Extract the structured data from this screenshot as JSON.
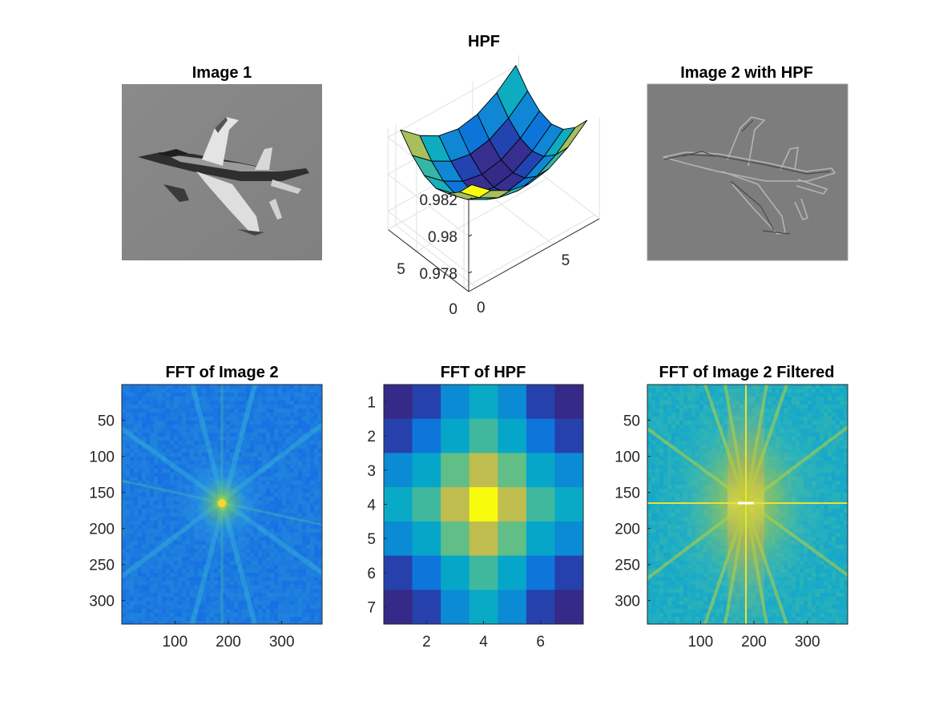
{
  "figure": {
    "titles": [
      "Image 1",
      "HPF",
      "Image 2 with HPF",
      "FFT of Image 2",
      "FFT of HPF",
      "FFT of Image 2 Filtered"
    ]
  },
  "chart_data": [
    {
      "type": "image",
      "title": "Image 1",
      "colormap": "gray",
      "background": "#878787",
      "content": "grayscale photograph of a fighter jet"
    },
    {
      "type": "surface",
      "title": "HPF",
      "x": [
        1,
        2,
        3,
        4,
        5,
        6,
        7
      ],
      "y": [
        1,
        2,
        3,
        4,
        5,
        6,
        7
      ],
      "xticks": [
        "0",
        "5"
      ],
      "yticks": [
        "0",
        "5"
      ],
      "zticks": [
        "0.978",
        "0.98",
        "0.982"
      ],
      "zlim": [
        0.977,
        0.9825
      ],
      "z": [
        [
          0.98237,
          0.98148,
          0.98089,
          0.98068,
          0.98089,
          0.98148,
          0.98237
        ],
        [
          0.98148,
          0.98059,
          0.98,
          0.97979,
          0.98,
          0.98059,
          0.98148
        ],
        [
          0.98089,
          0.98,
          0.97941,
          0.9792,
          0.97941,
          0.98,
          0.98089
        ],
        [
          0.98068,
          0.97979,
          0.9792,
          0.97899,
          0.9792,
          0.97979,
          0.98068
        ],
        [
          0.98089,
          0.98,
          0.97941,
          0.9792,
          0.97941,
          0.98,
          0.98089
        ],
        [
          0.98148,
          0.98059,
          0.98,
          0.97979,
          0.98,
          0.98059,
          0.98148
        ],
        [
          0.98237,
          0.98148,
          0.98089,
          0.98068,
          0.98089,
          0.98148,
          0.98237
        ]
      ],
      "grid": true,
      "colormap": "parula"
    },
    {
      "type": "image",
      "title": "Image 2 with HPF",
      "colormap": "gray",
      "background": "#7d7d7d",
      "content": "high-pass filtered fighter jet (edge outline)"
    },
    {
      "type": "heatmap",
      "title": "FFT of Image 2",
      "xlim": [
        0.5,
        375.5
      ],
      "ylim": [
        0.5,
        332.5
      ],
      "xticks": [
        100,
        200,
        300
      ],
      "yticks": [
        50,
        100,
        150,
        200,
        250,
        300
      ],
      "center": [
        188,
        166
      ],
      "colormap": "parula",
      "content": "log magnitude spectrum, mostly blue with faint yellow-green star pattern at center"
    },
    {
      "type": "heatmap",
      "title": "FFT of HPF",
      "xlim": [
        0.5,
        7.5
      ],
      "ylim": [
        0.5,
        7.5
      ],
      "xticks": [
        2,
        4,
        6
      ],
      "yticks": [
        1,
        2,
        3,
        4,
        5,
        6,
        7
      ],
      "values": [
        [
          0.0,
          0.12,
          0.32,
          0.46,
          0.32,
          0.12,
          0.0
        ],
        [
          0.12,
          0.24,
          0.44,
          0.58,
          0.44,
          0.24,
          0.12
        ],
        [
          0.32,
          0.44,
          0.64,
          0.78,
          0.64,
          0.44,
          0.32
        ],
        [
          0.46,
          0.58,
          0.78,
          1.0,
          0.78,
          0.58,
          0.46
        ],
        [
          0.32,
          0.44,
          0.64,
          0.78,
          0.64,
          0.44,
          0.32
        ],
        [
          0.12,
          0.24,
          0.44,
          0.58,
          0.44,
          0.24,
          0.12
        ],
        [
          0.0,
          0.12,
          0.32,
          0.46,
          0.32,
          0.12,
          0.0
        ]
      ],
      "colormap": "parula"
    },
    {
      "type": "heatmap",
      "title": "FFT of Image 2 Filtered",
      "xlim": [
        0.5,
        375.5
      ],
      "ylim": [
        0.5,
        332.5
      ],
      "xticks": [
        100,
        200,
        300
      ],
      "yticks": [
        50,
        100,
        150,
        200,
        250,
        300
      ],
      "center": [
        188,
        166
      ],
      "colormap": "parula",
      "content": "log magnitude spectrum, green-yellow with bright cross and diagonal streaks through center"
    }
  ]
}
